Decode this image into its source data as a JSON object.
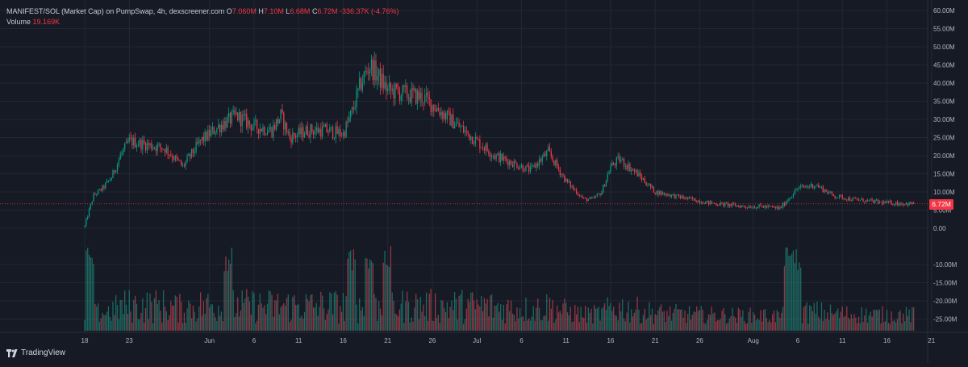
{
  "legend": {
    "title": "MANIFEST/SOL (Market Cap) on PumpSwap, 4h, dexscreener.com",
    "o_label": "O",
    "o_value": "7.060M",
    "h_label": "H",
    "h_value": "7.10M",
    "l_label": "L",
    "l_value": "6.68M",
    "c_label": "C",
    "c_value": "6.72M",
    "change": "-336.37K (-4.76%)",
    "volume_label": "Volume",
    "volume_value": "19.169K"
  },
  "last_price_tag": "6.72M",
  "branding": {
    "name": "TradingView"
  },
  "colors": {
    "background": "#161a25",
    "grid": "#232734",
    "up": "#089981",
    "down": "#f23645",
    "up_volume": "#22ab94",
    "down_volume": "#f7525f",
    "axis_text": "#b2b5be"
  },
  "chart_data": {
    "type": "candlestick",
    "interval": "4h",
    "y_axis": {
      "ticks": [
        60,
        55,
        50,
        45,
        40,
        35,
        30,
        25,
        20,
        15,
        10,
        5,
        0,
        -10,
        -15,
        -20,
        -25
      ],
      "tick_labels": [
        "60.00M",
        "55.00M",
        "50.00M",
        "45.00M",
        "40.00M",
        "35.00M",
        "30.00M",
        "25.00M",
        "20.00M",
        "15.00M",
        "10.00M",
        "5.00M",
        "0.00",
        "-10.00M",
        "-15.00M",
        "-20.00M",
        "-25.00M"
      ],
      "ylim": [
        -28,
        62
      ],
      "unit": "M"
    },
    "x_axis": {
      "tick_labels": [
        "18",
        "23",
        "Jun",
        "6",
        "11",
        "16",
        "21",
        "26",
        "Jul",
        "6",
        "11",
        "16",
        "21",
        "26",
        "Aug",
        "6",
        "11",
        "16",
        "21"
      ],
      "tick_days": [
        0,
        5,
        14,
        19,
        24,
        29,
        34,
        39,
        44,
        49,
        54,
        59,
        64,
        69,
        75,
        80,
        85,
        90,
        95
      ],
      "xlim_days": [
        -1.6,
        97
      ]
    },
    "last_close": 6.72,
    "path_days": [
      0,
      0.5,
      1,
      2,
      3,
      4,
      5,
      7,
      9,
      11,
      13,
      15,
      17,
      19,
      21,
      22,
      23,
      25,
      27,
      29,
      30,
      31,
      32,
      34,
      36,
      38,
      40,
      42,
      44,
      46,
      48,
      50,
      52,
      54,
      56,
      57,
      58,
      59,
      60,
      62,
      64,
      66,
      68,
      70,
      72,
      74,
      76,
      78,
      80,
      82,
      84,
      86,
      88,
      90,
      92,
      93
    ],
    "path_values": [
      0.5,
      5,
      9,
      11,
      14,
      20,
      24,
      23,
      22,
      17,
      24,
      28,
      31,
      28,
      27,
      31,
      25,
      27,
      27,
      26,
      32,
      40,
      45,
      38,
      37,
      36,
      32,
      28,
      24,
      20,
      18,
      16,
      21,
      13,
      8,
      8,
      10,
      17,
      19,
      15,
      10,
      9,
      8,
      7,
      6.5,
      6,
      6,
      5.5,
      11,
      12,
      9,
      8,
      7.5,
      7,
      6.8,
      6.72
    ],
    "volume_levels": {
      "typical_max_fraction": 0.6,
      "spikes_days": [
        0.5,
        16,
        30,
        32,
        34,
        79,
        80
      ]
    }
  }
}
